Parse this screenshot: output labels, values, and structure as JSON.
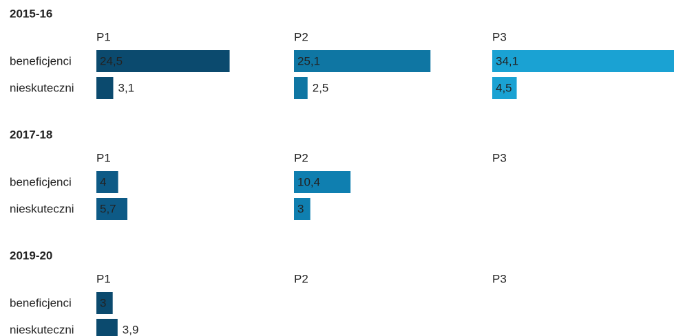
{
  "chart_data": {
    "type": "bar",
    "columns": [
      "P1",
      "P2",
      "P3"
    ],
    "categories": [
      "beneficjenci",
      "nieskuteczni"
    ],
    "rows": [
      {
        "title": "2015-16",
        "series": [
          {
            "name": "P1",
            "color": "#0b4a6e",
            "values": [
              24.5,
              3.1
            ],
            "value_labels": [
              "24,5",
              "3,1"
            ]
          },
          {
            "name": "P2",
            "color": "#0f76a3",
            "values": [
              25.1,
              2.5
            ],
            "value_labels": [
              "25,1",
              "2,5"
            ]
          },
          {
            "name": "P3",
            "color": "#1aa2d3",
            "values": [
              34.1,
              4.5
            ],
            "value_labels": [
              "34,1",
              "4,5"
            ]
          }
        ]
      },
      {
        "title": "2017-18",
        "series": [
          {
            "name": "P1",
            "color": "#0d5a86",
            "values": [
              4,
              5.7
            ],
            "value_labels": [
              "4",
              "5,7"
            ]
          },
          {
            "name": "P2",
            "color": "#0f7fb0",
            "values": [
              10.4,
              3
            ],
            "value_labels": [
              "10,4",
              "3"
            ]
          },
          {
            "name": "P3",
            "color": "#1aa2d3",
            "values": [
              null,
              null
            ]
          }
        ]
      },
      {
        "title": "2019-20",
        "series": [
          {
            "name": "P1",
            "color": "#0b4a6e",
            "values": [
              3,
              3.9
            ],
            "value_labels": [
              "3",
              "3,9"
            ]
          },
          {
            "name": "P2",
            "color": "#0f76a3",
            "values": [
              null,
              null
            ]
          },
          {
            "name": "P3",
            "color": "#1aa2d3",
            "values": [
              null,
              null
            ]
          }
        ]
      }
    ]
  }
}
